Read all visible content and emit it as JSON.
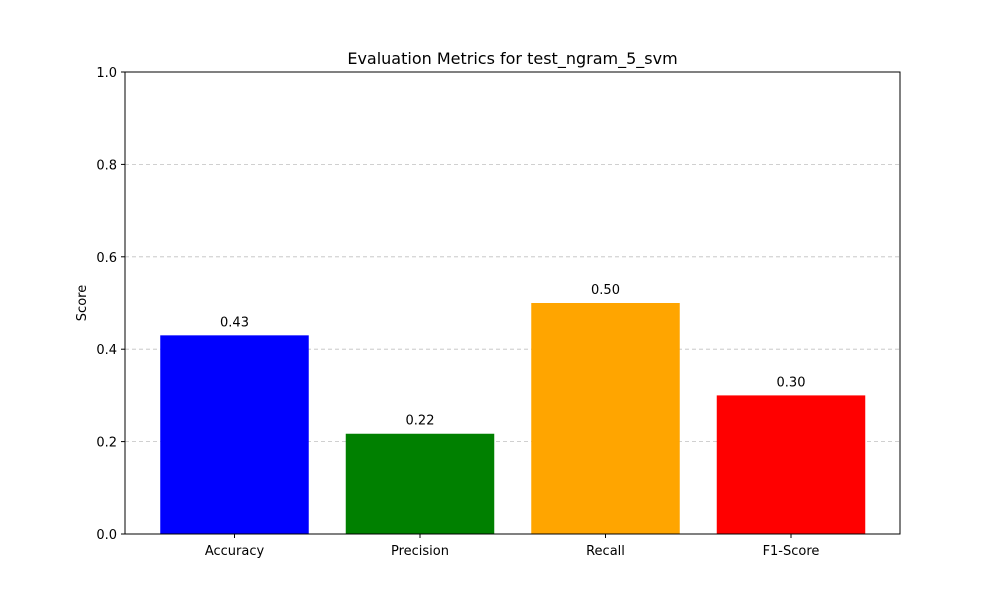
{
  "chart_data": {
    "type": "bar",
    "title": "Evaluation Metrics for test_ngram_5_svm",
    "xlabel": "",
    "ylabel": "Score",
    "categories": [
      "Accuracy",
      "Precision",
      "Recall",
      "F1-Score"
    ],
    "values": [
      0.43,
      0.217,
      0.5,
      0.3
    ],
    "value_labels": [
      "0.43",
      "0.22",
      "0.50",
      "0.30"
    ],
    "colors": [
      "#0000ff",
      "#008000",
      "#ffa500",
      "#ff0000"
    ],
    "ylim": [
      0,
      1.0
    ],
    "yticks": [
      0.0,
      0.2,
      0.4,
      0.6,
      0.8,
      1.0
    ],
    "ytick_labels": [
      "0.0",
      "0.2",
      "0.4",
      "0.6",
      "0.8",
      "1.0"
    ],
    "grid": {
      "axis": "y",
      "style": "dashed",
      "color": "#c0c0c0"
    },
    "legend": "none"
  }
}
